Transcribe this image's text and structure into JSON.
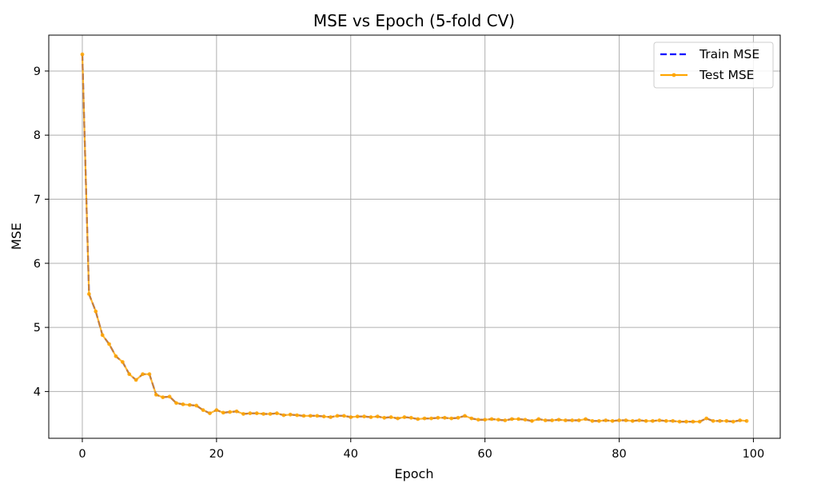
{
  "chart_data": {
    "type": "line",
    "title": "MSE vs Epoch (5-fold CV)",
    "xlabel": "Epoch",
    "ylabel": "MSE",
    "xlim": [
      -5,
      104
    ],
    "ylim": [
      3.27,
      9.56
    ],
    "grid": true,
    "legend_position": "top-right",
    "x_ticks": [
      "0",
      "20",
      "40",
      "60",
      "80",
      "100"
    ],
    "y_ticks": [
      "4",
      "5",
      "6",
      "7",
      "8",
      "9"
    ],
    "x": [
      0,
      1,
      2,
      3,
      4,
      5,
      6,
      7,
      8,
      9,
      10,
      11,
      12,
      13,
      14,
      15,
      16,
      17,
      18,
      19,
      20,
      21,
      22,
      23,
      24,
      25,
      26,
      27,
      28,
      29,
      30,
      31,
      32,
      33,
      34,
      35,
      36,
      37,
      38,
      39,
      40,
      41,
      42,
      43,
      44,
      45,
      46,
      47,
      48,
      49,
      50,
      51,
      52,
      53,
      54,
      55,
      56,
      57,
      58,
      59,
      60,
      61,
      62,
      63,
      64,
      65,
      66,
      67,
      68,
      69,
      70,
      71,
      72,
      73,
      74,
      75,
      76,
      77,
      78,
      79,
      80,
      81,
      82,
      83,
      84,
      85,
      86,
      87,
      88,
      89,
      90,
      91,
      92,
      93,
      94,
      95,
      96,
      97,
      98,
      99
    ],
    "series": [
      {
        "name": "Train MSE",
        "color": "#0000ff",
        "style": "dashed",
        "values": [
          9.26,
          5.52,
          5.25,
          4.88,
          4.74,
          4.55,
          4.46,
          4.27,
          4.18,
          4.27,
          4.27,
          3.95,
          3.91,
          3.92,
          3.82,
          3.8,
          3.79,
          3.78,
          3.71,
          3.66,
          3.71,
          3.67,
          3.68,
          3.69,
          3.65,
          3.66,
          3.66,
          3.65,
          3.65,
          3.66,
          3.63,
          3.64,
          3.63,
          3.62,
          3.62,
          3.62,
          3.61,
          3.6,
          3.62,
          3.62,
          3.6,
          3.61,
          3.61,
          3.6,
          3.61,
          3.59,
          3.6,
          3.58,
          3.6,
          3.59,
          3.57,
          3.58,
          3.58,
          3.59,
          3.59,
          3.58,
          3.59,
          3.62,
          3.58,
          3.56,
          3.56,
          3.57,
          3.56,
          3.55,
          3.57,
          3.57,
          3.56,
          3.54,
          3.57,
          3.55,
          3.55,
          3.56,
          3.55,
          3.55,
          3.55,
          3.57,
          3.54,
          3.54,
          3.55,
          3.54,
          3.55,
          3.55,
          3.54,
          3.55,
          3.54,
          3.54,
          3.55,
          3.54,
          3.54,
          3.53,
          3.53,
          3.53,
          3.53,
          3.58,
          3.54,
          3.54,
          3.54,
          3.53,
          3.55,
          3.54
        ]
      },
      {
        "name": "Test MSE",
        "color": "#ffa500",
        "style": "solid-marker",
        "values": [
          9.26,
          5.52,
          5.25,
          4.88,
          4.74,
          4.55,
          4.46,
          4.27,
          4.18,
          4.27,
          4.27,
          3.95,
          3.91,
          3.92,
          3.82,
          3.8,
          3.79,
          3.78,
          3.71,
          3.66,
          3.71,
          3.67,
          3.68,
          3.69,
          3.65,
          3.66,
          3.66,
          3.65,
          3.65,
          3.66,
          3.63,
          3.64,
          3.63,
          3.62,
          3.62,
          3.62,
          3.61,
          3.6,
          3.62,
          3.62,
          3.6,
          3.61,
          3.61,
          3.6,
          3.61,
          3.59,
          3.6,
          3.58,
          3.6,
          3.59,
          3.57,
          3.58,
          3.58,
          3.59,
          3.59,
          3.58,
          3.59,
          3.62,
          3.58,
          3.56,
          3.56,
          3.57,
          3.56,
          3.55,
          3.57,
          3.57,
          3.56,
          3.54,
          3.57,
          3.55,
          3.55,
          3.56,
          3.55,
          3.55,
          3.55,
          3.57,
          3.54,
          3.54,
          3.55,
          3.54,
          3.55,
          3.55,
          3.54,
          3.55,
          3.54,
          3.54,
          3.55,
          3.54,
          3.54,
          3.53,
          3.53,
          3.53,
          3.53,
          3.58,
          3.54,
          3.54,
          3.54,
          3.53,
          3.55,
          3.54
        ]
      }
    ]
  }
}
